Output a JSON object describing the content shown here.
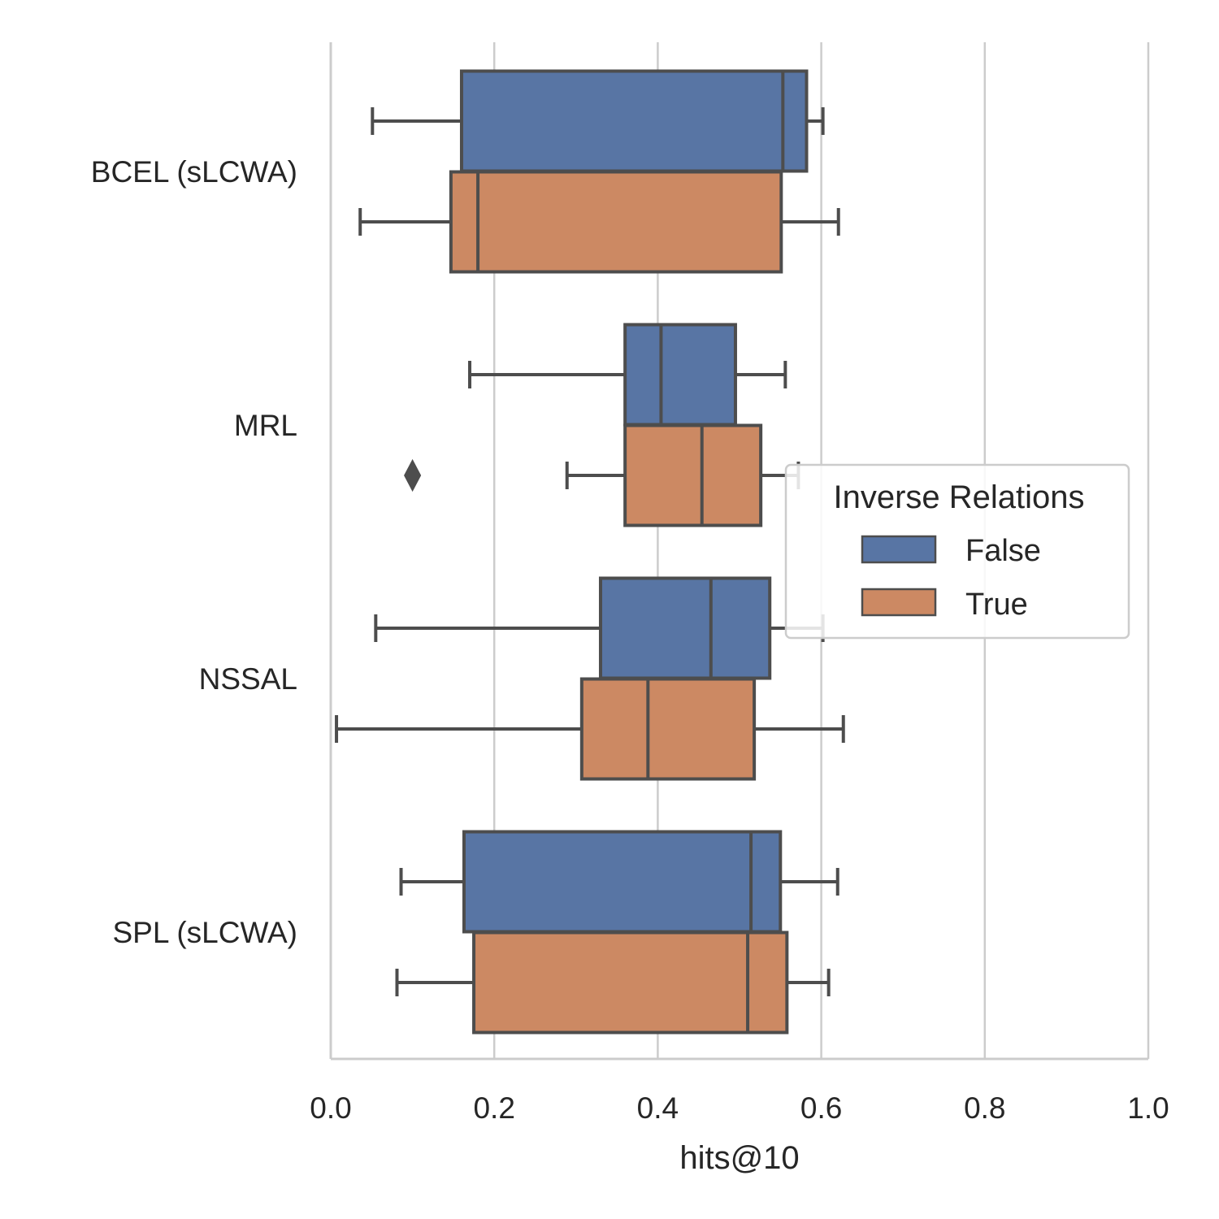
{
  "chart_data": {
    "type": "boxplot",
    "orientation": "horizontal",
    "xlabel": "hits@10",
    "ylabel": "",
    "xlim": [
      0.0,
      1.0
    ],
    "xticks": [
      "0.0",
      "0.2",
      "0.4",
      "0.6",
      "0.8",
      "1.0"
    ],
    "grid": "vertical",
    "categories": [
      "BCEL (sLCWA)",
      "MRL",
      "NSSAL",
      "SPL (sLCWA)"
    ],
    "legend": {
      "title": "Inverse Relations",
      "placement": "center-right",
      "entries": [
        "False",
        "True"
      ]
    },
    "colors": {
      "False": "#5875a4",
      "True": "#cc8963",
      "line": "#4d4d4d",
      "grid": "#cccccc",
      "spine": "#cccccc"
    },
    "series": [
      {
        "name": "False",
        "boxes": [
          {
            "category": "BCEL (sLCWA)",
            "whisker_low": 0.051,
            "q1": 0.16,
            "median": 0.553,
            "q3": 0.582,
            "whisker_high": 0.602,
            "outliers": []
          },
          {
            "category": "MRL",
            "whisker_low": 0.17,
            "q1": 0.36,
            "median": 0.404,
            "q3": 0.495,
            "whisker_high": 0.556,
            "outliers": []
          },
          {
            "category": "NSSAL",
            "whisker_low": 0.055,
            "q1": 0.33,
            "median": 0.465,
            "q3": 0.537,
            "whisker_high": 0.602,
            "outliers": []
          },
          {
            "category": "SPL (sLCWA)",
            "whisker_low": 0.086,
            "q1": 0.163,
            "median": 0.514,
            "q3": 0.55,
            "whisker_high": 0.62,
            "outliers": []
          }
        ]
      },
      {
        "name": "True",
        "boxes": [
          {
            "category": "BCEL (sLCWA)",
            "whisker_low": 0.036,
            "q1": 0.147,
            "median": 0.18,
            "q3": 0.551,
            "whisker_high": 0.621,
            "outliers": []
          },
          {
            "category": "MRL",
            "whisker_low": 0.289,
            "q1": 0.36,
            "median": 0.454,
            "q3": 0.526,
            "whisker_high": 0.572,
            "outliers": [
              0.1
            ]
          },
          {
            "category": "NSSAL",
            "whisker_low": 0.007,
            "q1": 0.307,
            "median": 0.388,
            "q3": 0.518,
            "whisker_high": 0.627,
            "outliers": []
          },
          {
            "category": "SPL (sLCWA)",
            "whisker_low": 0.081,
            "q1": 0.175,
            "median": 0.51,
            "q3": 0.558,
            "whisker_high": 0.609,
            "outliers": []
          }
        ]
      }
    ]
  }
}
